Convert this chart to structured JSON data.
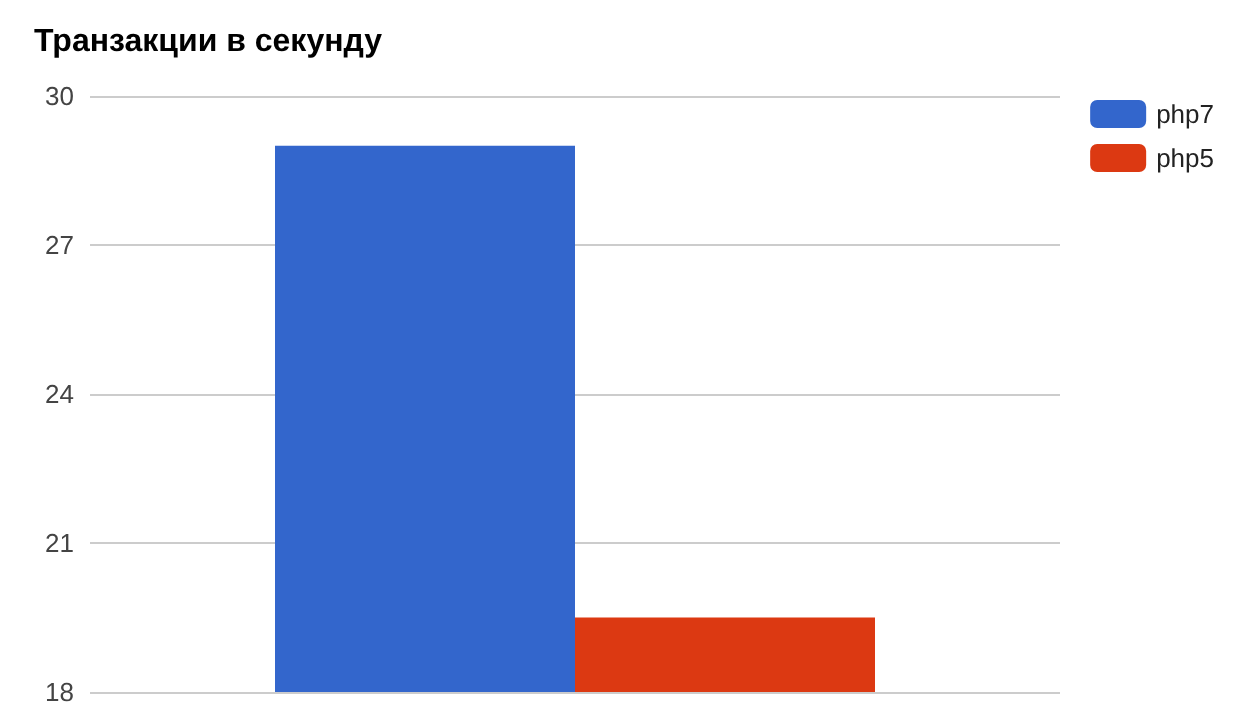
{
  "chart_data": {
    "type": "bar",
    "title": "Транзакции в секунду",
    "categories": [
      null
    ],
    "series": [
      {
        "name": "php7",
        "color": "#3366cc",
        "values": [
          29.0
        ]
      },
      {
        "name": "php5",
        "color": "#dc3912",
        "values": [
          19.5
        ]
      }
    ],
    "ylim": [
      18,
      30
    ],
    "yticks": [
      18,
      21,
      24,
      27,
      30
    ],
    "grid": "y",
    "legend": "top right"
  }
}
